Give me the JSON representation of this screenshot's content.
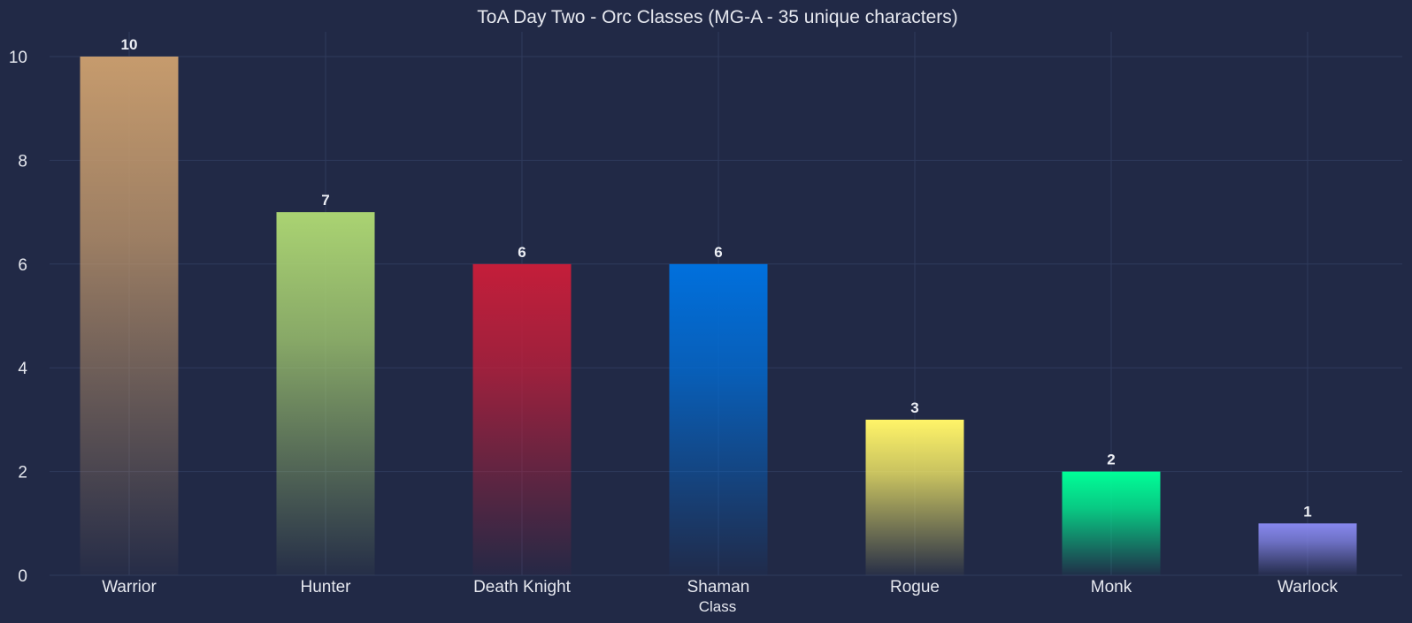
{
  "chart_data": {
    "type": "bar",
    "title": "ToA Day Two - Orc Classes (MG-A - 35 unique characters)",
    "xlabel": "Class",
    "ylabel": "",
    "categories": [
      "Warrior",
      "Hunter",
      "Death Knight",
      "Shaman",
      "Rogue",
      "Monk",
      "Warlock"
    ],
    "values": [
      10,
      7,
      6,
      6,
      3,
      2,
      1
    ],
    "colors": [
      "#C69B6D",
      "#AAD372",
      "#C41E3A",
      "#0070DD",
      "#FFF468",
      "#00FF98",
      "#8788EE"
    ],
    "ylim": [
      0,
      10.4
    ],
    "yticks": [
      0,
      2,
      4,
      6,
      8,
      10
    ],
    "grid": true,
    "data_labels": true,
    "background": "#212946",
    "grid_color": "#2f3a5c",
    "text_color": "#e6e8ef"
  }
}
